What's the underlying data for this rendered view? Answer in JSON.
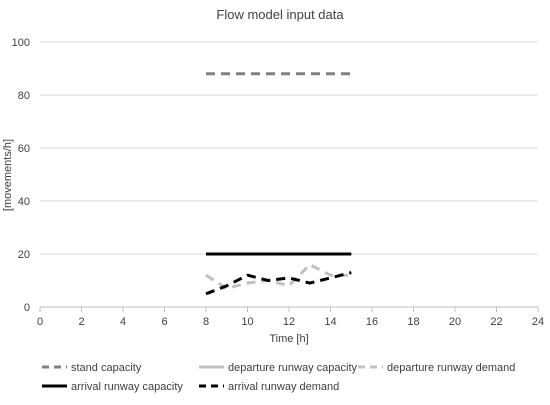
{
  "chart_data": {
    "type": "line",
    "title": "Flow model input data",
    "xlabel": "Time [h]",
    "ylabel": "[movements/h]",
    "xlim": [
      0,
      24
    ],
    "ylim": [
      0,
      100
    ],
    "xticks": [
      0,
      2,
      4,
      6,
      8,
      10,
      12,
      14,
      16,
      18,
      20,
      22,
      24
    ],
    "yticks": [
      0,
      20,
      40,
      60,
      80,
      100
    ],
    "grid": "horizontal",
    "legend_position": "bottom",
    "series": [
      {
        "name": "stand capacity",
        "color": "#808080",
        "dash": "dashed",
        "x": [
          8,
          9,
          10,
          11,
          12,
          13,
          14,
          15
        ],
        "y": [
          88,
          88,
          88,
          88,
          88,
          88,
          88,
          88
        ]
      },
      {
        "name": "departure runway capacity",
        "color": "#c0c0c0",
        "dash": "solid",
        "x": [
          8,
          9,
          10,
          11,
          12,
          13,
          14,
          15
        ],
        "y": [
          20,
          20,
          20,
          20,
          20,
          20,
          20,
          20
        ]
      },
      {
        "name": "departure runway demand",
        "color": "#c0c0c0",
        "dash": "dashed",
        "x": [
          8,
          9,
          10,
          11,
          12,
          13,
          14,
          15
        ],
        "y": [
          12,
          7,
          9,
          10,
          8,
          16,
          12,
          12
        ]
      },
      {
        "name": "arrival runway capacity",
        "color": "#000000",
        "dash": "solid",
        "x": [
          8,
          9,
          10,
          11,
          12,
          13,
          14,
          15
        ],
        "y": [
          20,
          20,
          20,
          20,
          20,
          20,
          20,
          20
        ]
      },
      {
        "name": "arrival runway demand",
        "color": "#000000",
        "dash": "dashed",
        "x": [
          8,
          9,
          10,
          11,
          12,
          13,
          14,
          15
        ],
        "y": [
          5,
          8,
          12,
          10,
          11,
          9,
          11,
          13
        ]
      }
    ]
  }
}
